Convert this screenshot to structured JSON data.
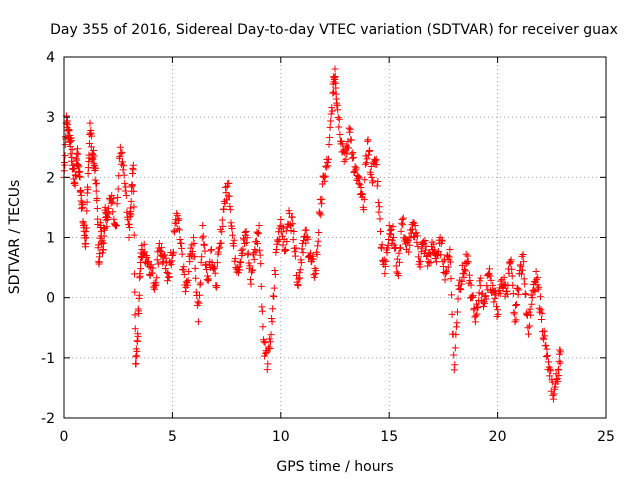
{
  "chart_data": {
    "type": "scatter",
    "title": "Day 355 of 2016, Sidereal Day-to-day VTEC variation (SDTVAR) for receiver guax",
    "xlabel": "GPS time / hours",
    "ylabel": "SDTVAR / TECUs",
    "xlim": [
      0,
      25
    ],
    "ylim": [
      -2,
      4
    ],
    "xticks": [
      0,
      5,
      10,
      15,
      20,
      25
    ],
    "yticks": [
      -2,
      -1,
      0,
      1,
      2,
      3,
      4
    ],
    "grid": true,
    "marker": "+",
    "color": "#ff0000",
    "series": [
      {
        "name": "SDTVAR",
        "x": [
          0.0,
          0.1,
          0.2,
          0.3,
          0.4,
          0.5,
          0.6,
          0.7,
          0.8,
          0.9,
          1.0,
          1.1,
          1.2,
          1.3,
          1.4,
          1.5,
          1.6,
          1.7,
          1.8,
          1.9,
          2.0,
          2.2,
          2.4,
          2.6,
          2.8,
          3.0,
          3.1,
          3.2,
          3.3,
          3.4,
          3.5,
          3.6,
          3.8,
          4.0,
          4.2,
          4.4,
          4.6,
          4.8,
          5.0,
          5.2,
          5.4,
          5.6,
          5.8,
          6.0,
          6.2,
          6.4,
          6.6,
          6.8,
          7.0,
          7.2,
          7.4,
          7.6,
          7.8,
          8.0,
          8.2,
          8.4,
          8.6,
          8.8,
          9.0,
          9.2,
          9.4,
          9.6,
          9.8,
          10.0,
          10.2,
          10.4,
          10.6,
          10.8,
          11.0,
          11.2,
          11.4,
          11.6,
          11.8,
          12.0,
          12.2,
          12.4,
          12.5,
          12.6,
          12.8,
          13.0,
          13.2,
          13.4,
          13.6,
          13.8,
          14.0,
          14.2,
          14.4,
          14.6,
          14.8,
          15.0,
          15.2,
          15.4,
          15.6,
          15.8,
          16.0,
          16.2,
          16.4,
          16.6,
          16.8,
          17.0,
          17.2,
          17.4,
          17.6,
          17.8,
          18.0,
          18.2,
          18.4,
          18.6,
          18.8,
          19.0,
          19.2,
          19.4,
          19.6,
          19.8,
          20.0,
          20.2,
          20.4,
          20.6,
          20.8,
          21.0,
          21.2,
          21.4,
          21.6,
          21.8,
          22.0,
          22.2,
          22.4,
          22.6,
          22.8,
          22.9
        ],
        "y": [
          2.0,
          2.9,
          2.8,
          2.6,
          2.2,
          1.9,
          2.4,
          2.1,
          1.7,
          1.2,
          0.9,
          1.8,
          2.9,
          2.4,
          2.2,
          1.9,
          0.6,
          1.2,
          0.8,
          1.5,
          1.3,
          1.7,
          1.2,
          2.5,
          1.9,
          1.0,
          1.6,
          2.2,
          -1.1,
          -0.6,
          0.4,
          0.8,
          0.7,
          0.5,
          0.2,
          0.9,
          0.6,
          0.4,
          0.7,
          1.4,
          0.9,
          0.1,
          0.6,
          0.9,
          -0.4,
          1.2,
          0.3,
          0.8,
          0.2,
          0.9,
          1.6,
          1.9,
          0.9,
          0.5,
          0.7,
          1.1,
          0.3,
          0.8,
          1.2,
          -0.7,
          -1.1,
          -0.4,
          0.8,
          1.3,
          0.8,
          1.4,
          1.1,
          0.2,
          0.9,
          1.0,
          0.6,
          0.4,
          1.4,
          2.0,
          2.3,
          3.4,
          3.8,
          3.2,
          2.6,
          2.3,
          2.8,
          2.1,
          1.9,
          1.5,
          2.6,
          2.0,
          2.3,
          1.1,
          0.4,
          1.2,
          1.0,
          0.4,
          1.3,
          0.8,
          1.0,
          1.2,
          0.6,
          0.9,
          0.6,
          0.8,
          0.7,
          0.9,
          0.4,
          0.8,
          -1.2,
          0.2,
          0.4,
          0.6,
          0.0,
          -0.3,
          0.2,
          -0.1,
          0.4,
          0.1,
          -0.2,
          0.3,
          0.1,
          0.6,
          -0.4,
          0.4,
          0.6,
          -0.5,
          0.0,
          0.3,
          -0.2,
          -0.8,
          -1.3,
          -1.6,
          -1.2,
          -0.9
        ]
      }
    ]
  }
}
